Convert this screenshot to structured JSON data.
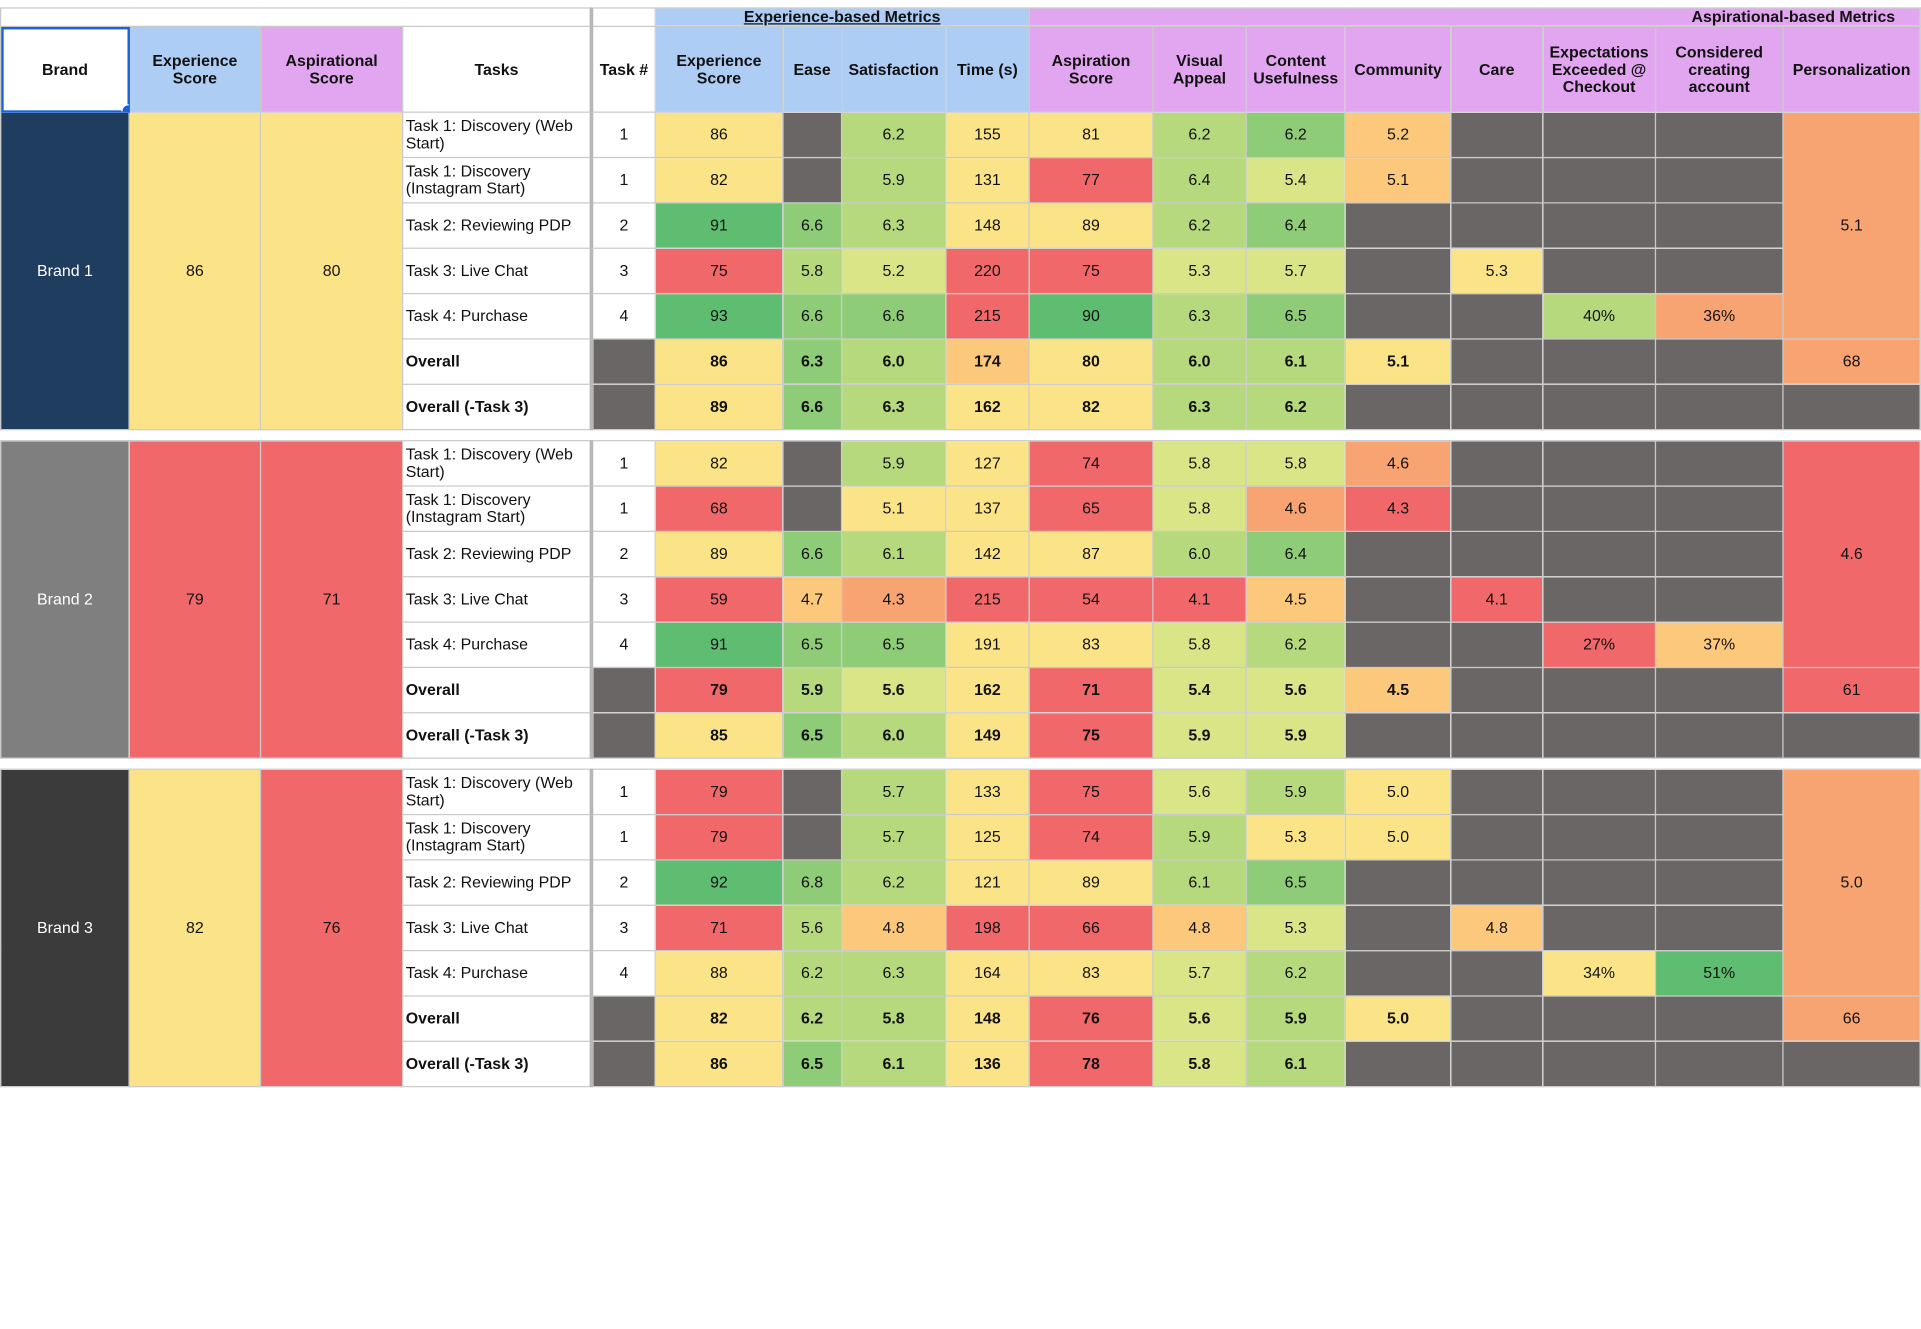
{
  "groups": {
    "experience": "Experience-based Metrics",
    "aspirational": "Aspirational-based Metrics"
  },
  "headers": {
    "brand": "Brand",
    "experience_score": "Experience Score",
    "aspirational_score": "Aspirational Score",
    "tasks": "Tasks",
    "task_num": "Task #",
    "exp_score": "Experience Score",
    "ease": "Ease",
    "satisfaction": "Satisfaction",
    "time": "Time (s)",
    "aspiration_score": "Aspiration Score",
    "visual_appeal": "Visual Appeal",
    "content_usefulness": "Content Usefulness",
    "community": "Community",
    "care": "Care",
    "expectations": "Expectations Exceeded @ Checkout",
    "considered": "Considered creating account",
    "personalization": "Personalization"
  },
  "brands": [
    {
      "name": "Brand 1",
      "experience": "86",
      "aspirational": "80",
      "pers_task": "5.1",
      "pers_overall": "68",
      "rows": [
        {
          "task": "Task 1: Discovery (Web Start)",
          "num": "1",
          "exp": "86",
          "ease": "",
          "sat": "6.2",
          "time": "155",
          "asp": "81",
          "vis": "6.2",
          "con": "6.2",
          "com": "5.2",
          "care": "",
          "expx": "",
          "cons": ""
        },
        {
          "task": "Task 1: Discovery (Instagram Start)",
          "num": "1",
          "exp": "82",
          "ease": "",
          "sat": "5.9",
          "time": "131",
          "asp": "77",
          "vis": "6.4",
          "con": "5.4",
          "com": "5.1",
          "care": "",
          "expx": "",
          "cons": ""
        },
        {
          "task": "Task 2: Reviewing PDP",
          "num": "2",
          "exp": "91",
          "ease": "6.6",
          "sat": "6.3",
          "time": "148",
          "asp": "89",
          "vis": "6.2",
          "con": "6.4",
          "com": "",
          "care": "",
          "expx": "",
          "cons": ""
        },
        {
          "task": "Task 3: Live Chat",
          "num": "3",
          "exp": "75",
          "ease": "5.8",
          "sat": "5.2",
          "time": "220",
          "asp": "75",
          "vis": "5.3",
          "con": "5.7",
          "com": "",
          "care": "5.3",
          "expx": "",
          "cons": ""
        },
        {
          "task": "Task 4: Purchase",
          "num": "4",
          "exp": "93",
          "ease": "6.6",
          "sat": "6.6",
          "time": "215",
          "asp": "90",
          "vis": "6.3",
          "con": "6.5",
          "com": "",
          "care": "",
          "expx": "40%",
          "cons": "36%"
        },
        {
          "task": "Overall",
          "num": "",
          "exp": "86",
          "ease": "6.3",
          "sat": "6.0",
          "time": "174",
          "asp": "80",
          "vis": "6.0",
          "con": "6.1",
          "com": "5.1",
          "care": "",
          "expx": "",
          "cons": ""
        },
        {
          "task": "Overall (-Task 3)",
          "num": "",
          "exp": "89",
          "ease": "6.6",
          "sat": "6.3",
          "time": "162",
          "asp": "82",
          "vis": "6.3",
          "con": "6.2",
          "com": "",
          "care": "",
          "expx": "",
          "cons": ""
        }
      ]
    },
    {
      "name": "Brand 2",
      "experience": "79",
      "aspirational": "71",
      "pers_task": "4.6",
      "pers_overall": "61",
      "rows": [
        {
          "task": "Task 1: Discovery (Web Start)",
          "num": "1",
          "exp": "82",
          "ease": "",
          "sat": "5.9",
          "time": "127",
          "asp": "74",
          "vis": "5.8",
          "con": "5.8",
          "com": "4.6",
          "care": "",
          "expx": "",
          "cons": ""
        },
        {
          "task": "Task 1: Discovery (Instagram Start)",
          "num": "1",
          "exp": "68",
          "ease": "",
          "sat": "5.1",
          "time": "137",
          "asp": "65",
          "vis": "5.8",
          "con": "4.6",
          "com": "4.3",
          "care": "",
          "expx": "",
          "cons": ""
        },
        {
          "task": "Task 2: Reviewing PDP",
          "num": "2",
          "exp": "89",
          "ease": "6.6",
          "sat": "6.1",
          "time": "142",
          "asp": "87",
          "vis": "6.0",
          "con": "6.4",
          "com": "",
          "care": "",
          "expx": "",
          "cons": ""
        },
        {
          "task": "Task 3: Live Chat",
          "num": "3",
          "exp": "59",
          "ease": "4.7",
          "sat": "4.3",
          "time": "215",
          "asp": "54",
          "vis": "4.1",
          "con": "4.5",
          "com": "",
          "care": "4.1",
          "expx": "",
          "cons": ""
        },
        {
          "task": "Task 4: Purchase",
          "num": "4",
          "exp": "91",
          "ease": "6.5",
          "sat": "6.5",
          "time": "191",
          "asp": "83",
          "vis": "5.8",
          "con": "6.2",
          "com": "",
          "care": "",
          "expx": "27%",
          "cons": "37%"
        },
        {
          "task": "Overall",
          "num": "",
          "exp": "79",
          "ease": "5.9",
          "sat": "5.6",
          "time": "162",
          "asp": "71",
          "vis": "5.4",
          "con": "5.6",
          "com": "4.5",
          "care": "",
          "expx": "",
          "cons": ""
        },
        {
          "task": "Overall (-Task 3)",
          "num": "",
          "exp": "85",
          "ease": "6.5",
          "sat": "6.0",
          "time": "149",
          "asp": "75",
          "vis": "5.9",
          "con": "5.9",
          "com": "",
          "care": "",
          "expx": "",
          "cons": ""
        }
      ]
    },
    {
      "name": "Brand 3",
      "experience": "82",
      "aspirational": "76",
      "pers_task": "5.0",
      "pers_overall": "66",
      "rows": [
        {
          "task": "Task 1: Discovery (Web Start)",
          "num": "1",
          "exp": "79",
          "ease": "",
          "sat": "5.7",
          "time": "133",
          "asp": "75",
          "vis": "5.6",
          "con": "5.9",
          "com": "5.0",
          "care": "",
          "expx": "",
          "cons": ""
        },
        {
          "task": "Task 1: Discovery (Instagram Start)",
          "num": "1",
          "exp": "79",
          "ease": "",
          "sat": "5.7",
          "time": "125",
          "asp": "74",
          "vis": "5.9",
          "con": "5.3",
          "com": "5.0",
          "care": "",
          "expx": "",
          "cons": ""
        },
        {
          "task": "Task 2: Reviewing PDP",
          "num": "2",
          "exp": "92",
          "ease": "6.8",
          "sat": "6.2",
          "time": "121",
          "asp": "89",
          "vis": "6.1",
          "con": "6.5",
          "com": "",
          "care": "",
          "expx": "",
          "cons": ""
        },
        {
          "task": "Task 3: Live Chat",
          "num": "3",
          "exp": "71",
          "ease": "5.6",
          "sat": "4.8",
          "time": "198",
          "asp": "66",
          "vis": "4.8",
          "con": "5.3",
          "com": "",
          "care": "4.8",
          "expx": "",
          "cons": ""
        },
        {
          "task": "Task 4: Purchase",
          "num": "4",
          "exp": "88",
          "ease": "6.2",
          "sat": "6.3",
          "time": "164",
          "asp": "83",
          "vis": "5.7",
          "con": "6.2",
          "com": "",
          "care": "",
          "expx": "34%",
          "cons": "51%"
        },
        {
          "task": "Overall",
          "num": "",
          "exp": "82",
          "ease": "6.2",
          "sat": "5.8",
          "time": "148",
          "asp": "76",
          "vis": "5.6",
          "con": "5.9",
          "com": "5.0",
          "care": "",
          "expx": "",
          "cons": ""
        },
        {
          "task": "Overall (-Task 3)",
          "num": "",
          "exp": "86",
          "ease": "6.5",
          "sat": "6.1",
          "time": "136",
          "asp": "78",
          "vis": "5.8",
          "con": "6.1",
          "com": "",
          "care": "",
          "expx": "",
          "cons": ""
        }
      ]
    }
  ]
}
